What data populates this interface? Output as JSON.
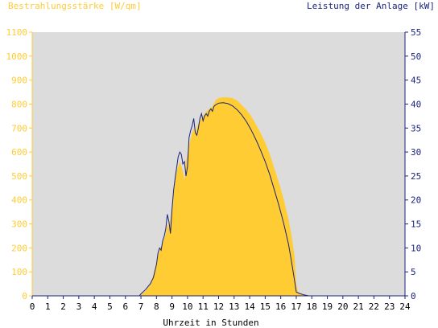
{
  "colors": {
    "plot_bg": "#dcdcdc",
    "area": "#ffcc33",
    "line": "#1a237e",
    "left_axis": "#ffcc33",
    "right_axis": "#1a237e",
    "text": "#000000"
  },
  "chart_data": {
    "type": "area",
    "title_left": "Bestrahlungsstärke [W/qm]",
    "title_right": "Leistung der Anlage [kW]",
    "xlabel": "Uhrzeit in Stunden",
    "xlim": [
      0,
      24
    ],
    "x_ticks": [
      "0",
      "1",
      "2",
      "3",
      "4",
      "5",
      "6",
      "7",
      "8",
      "9",
      "10",
      "11",
      "12",
      "13",
      "14",
      "15",
      "16",
      "17",
      "18",
      "19",
      "20",
      "21",
      "22",
      "23",
      "24"
    ],
    "ylim_left": [
      0,
      1100
    ],
    "y_ticks_left": [
      "0",
      "100",
      "200",
      "300",
      "400",
      "500",
      "600",
      "700",
      "800",
      "900",
      "1000",
      "1100"
    ],
    "ylim_right": [
      0,
      55
    ],
    "y_ticks_right": [
      "0",
      "5",
      "10",
      "15",
      "20",
      "25",
      "30",
      "35",
      "40",
      "45",
      "50",
      "55"
    ],
    "series": [
      {
        "name": "Bestrahlungsstärke [W/qm]",
        "axis": "left",
        "style": "area",
        "points": [
          [
            0,
            0
          ],
          [
            6.9,
            0
          ],
          [
            7.0,
            5
          ],
          [
            7.3,
            20
          ],
          [
            7.6,
            45
          ],
          [
            7.8,
            90
          ],
          [
            8.0,
            140
          ],
          [
            8.2,
            190
          ],
          [
            8.4,
            220
          ],
          [
            8.6,
            260
          ],
          [
            8.7,
            300
          ],
          [
            8.8,
            280
          ],
          [
            8.9,
            320
          ],
          [
            9.1,
            430
          ],
          [
            9.3,
            520
          ],
          [
            9.5,
            560
          ],
          [
            9.6,
            540
          ],
          [
            9.7,
            520
          ],
          [
            9.8,
            480
          ],
          [
            9.9,
            560
          ],
          [
            10.1,
            630
          ],
          [
            10.3,
            680
          ],
          [
            10.4,
            700
          ],
          [
            10.5,
            680
          ],
          [
            10.7,
            720
          ],
          [
            10.9,
            740
          ],
          [
            11.1,
            760
          ],
          [
            11.4,
            780
          ],
          [
            11.6,
            790
          ],
          [
            11.8,
            815
          ],
          [
            12.0,
            825
          ],
          [
            12.3,
            828
          ],
          [
            12.6,
            828
          ],
          [
            12.9,
            825
          ],
          [
            13.2,
            815
          ],
          [
            13.5,
            795
          ],
          [
            13.8,
            775
          ],
          [
            14.1,
            750
          ],
          [
            14.4,
            715
          ],
          [
            14.7,
            680
          ],
          [
            15.0,
            640
          ],
          [
            15.3,
            590
          ],
          [
            15.6,
            530
          ],
          [
            15.9,
            470
          ],
          [
            16.2,
            400
          ],
          [
            16.5,
            320
          ],
          [
            16.7,
            250
          ],
          [
            16.9,
            160
          ],
          [
            17.0,
            50
          ],
          [
            17.1,
            15
          ],
          [
            17.4,
            8
          ],
          [
            17.7,
            3
          ],
          [
            17.9,
            0
          ],
          [
            24,
            0
          ]
        ]
      },
      {
        "name": "Leistung der Anlage [kW]",
        "axis": "right",
        "style": "line",
        "points": [
          [
            0,
            0
          ],
          [
            6.9,
            0
          ],
          [
            7.0,
            0.4
          ],
          [
            7.3,
            1.3
          ],
          [
            7.6,
            2.5
          ],
          [
            7.8,
            3.8
          ],
          [
            8.0,
            6.5
          ],
          [
            8.1,
            9.0
          ],
          [
            8.2,
            10.0
          ],
          [
            8.3,
            9.5
          ],
          [
            8.4,
            11.5
          ],
          [
            8.5,
            12.5
          ],
          [
            8.6,
            14.0
          ],
          [
            8.7,
            17.0
          ],
          [
            8.8,
            15.5
          ],
          [
            8.9,
            13.0
          ],
          [
            9.0,
            18.0
          ],
          [
            9.1,
            22.0
          ],
          [
            9.2,
            24.5
          ],
          [
            9.4,
            29.0
          ],
          [
            9.5,
            30.0
          ],
          [
            9.6,
            29.5
          ],
          [
            9.7,
            27.5
          ],
          [
            9.8,
            28.0
          ],
          [
            9.9,
            25.0
          ],
          [
            10.0,
            27.0
          ],
          [
            10.1,
            33.0
          ],
          [
            10.2,
            34.5
          ],
          [
            10.3,
            35.5
          ],
          [
            10.4,
            37.0
          ],
          [
            10.5,
            34.0
          ],
          [
            10.6,
            33.5
          ],
          [
            10.7,
            35.0
          ],
          [
            10.8,
            37.0
          ],
          [
            10.9,
            38.0
          ],
          [
            11.0,
            36.5
          ],
          [
            11.1,
            37.5
          ],
          [
            11.2,
            38.0
          ],
          [
            11.3,
            37.5
          ],
          [
            11.4,
            38.5
          ],
          [
            11.5,
            39.0
          ],
          [
            11.6,
            38.5
          ],
          [
            11.7,
            39.5
          ],
          [
            11.8,
            39.8
          ],
          [
            12.0,
            40.2
          ],
          [
            12.3,
            40.3
          ],
          [
            12.6,
            40.1
          ],
          [
            12.9,
            39.6
          ],
          [
            13.2,
            38.8
          ],
          [
            13.5,
            37.7
          ],
          [
            13.8,
            36.3
          ],
          [
            14.1,
            34.6
          ],
          [
            14.4,
            32.6
          ],
          [
            14.7,
            30.4
          ],
          [
            15.0,
            28.0
          ],
          [
            15.3,
            25.2
          ],
          [
            15.6,
            22.0
          ],
          [
            15.9,
            18.7
          ],
          [
            16.2,
            15.0
          ],
          [
            16.5,
            10.8
          ],
          [
            16.7,
            7.0
          ],
          [
            16.9,
            3.0
          ],
          [
            17.0,
            0.8
          ],
          [
            17.2,
            0.5
          ],
          [
            17.5,
            0.2
          ],
          [
            17.8,
            0
          ],
          [
            24,
            0
          ]
        ]
      }
    ]
  }
}
